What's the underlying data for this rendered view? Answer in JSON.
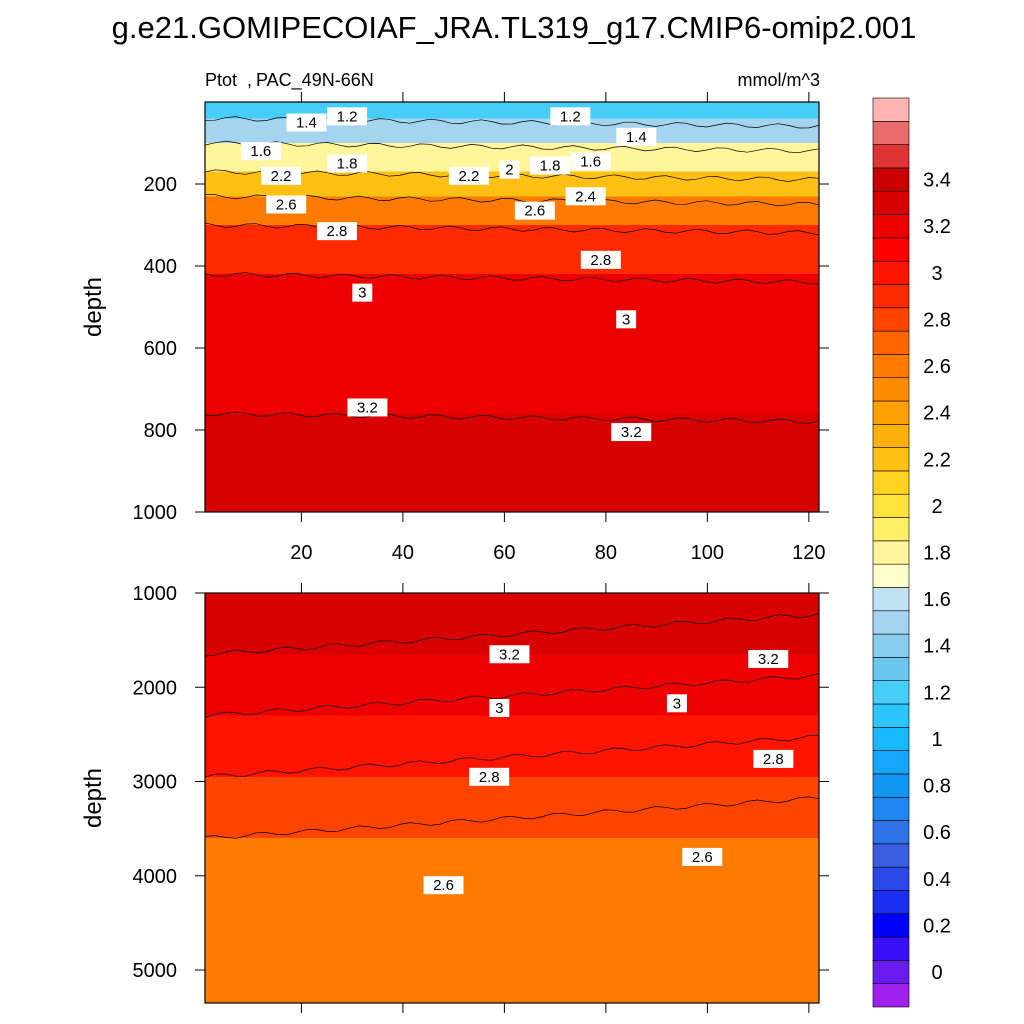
{
  "title": "g.e21.GOMIPECOIAF_JRA.TL319_g17.CMIP6-omip2.001",
  "chart_data": {
    "type": "contour",
    "variable": "Ptot",
    "region": "PAC_49N-66N",
    "units": "mmol/m^3",
    "x_label": "",
    "x_ticks": [
      20,
      40,
      60,
      80,
      100,
      120
    ],
    "x_range": [
      1,
      122
    ],
    "panels": [
      {
        "name": "upper",
        "ylabel": "depth",
        "y_range": [
          0,
          1000
        ],
        "y_ticks": [
          200,
          400,
          600,
          800,
          1000
        ],
        "fill_levels": [
          {
            "depth_top": 0,
            "depth_bottom": 40,
            "value": 1.1
          },
          {
            "depth_top": 40,
            "depth_bottom": 100,
            "value": 1.4
          },
          {
            "depth_top": 100,
            "depth_bottom": 170,
            "value": 1.7
          },
          {
            "depth_top": 170,
            "depth_bottom": 230,
            "value": 2.1
          },
          {
            "depth_top": 230,
            "depth_bottom": 300,
            "value": 2.5
          },
          {
            "depth_top": 300,
            "depth_bottom": 420,
            "value": 2.85
          },
          {
            "depth_top": 420,
            "depth_bottom": 760,
            "value": 3.1
          },
          {
            "depth_top": 760,
            "depth_bottom": 1000,
            "value": 3.25
          }
        ],
        "contour_labels": [
          {
            "text": "1.2",
            "x": 29,
            "depth": 35
          },
          {
            "text": "1.4",
            "x": 21,
            "depth": 50
          },
          {
            "text": "1.6",
            "x": 12,
            "depth": 120
          },
          {
            "text": "1.8",
            "x": 29,
            "depth": 150
          },
          {
            "text": "2.2",
            "x": 16,
            "depth": 180
          },
          {
            "text": "2.6",
            "x": 17,
            "depth": 250
          },
          {
            "text": "2.8",
            "x": 27,
            "depth": 315
          },
          {
            "text": "3",
            "x": 32,
            "depth": 465
          },
          {
            "text": "3.2",
            "x": 33,
            "depth": 745
          },
          {
            "text": "1.2",
            "x": 73,
            "depth": 35
          },
          {
            "text": "1.4",
            "x": 86,
            "depth": 85
          },
          {
            "text": "2.2",
            "x": 53,
            "depth": 180
          },
          {
            "text": "2",
            "x": 61,
            "depth": 165
          },
          {
            "text": "1.8",
            "x": 69,
            "depth": 155
          },
          {
            "text": "1.6",
            "x": 77,
            "depth": 145
          },
          {
            "text": "2.4",
            "x": 76,
            "depth": 230
          },
          {
            "text": "2.6",
            "x": 66,
            "depth": 265
          },
          {
            "text": "2.8",
            "x": 79,
            "depth": 385
          },
          {
            "text": "3",
            "x": 84,
            "depth": 530
          },
          {
            "text": "3.2",
            "x": 85,
            "depth": 805
          }
        ]
      },
      {
        "name": "lower",
        "ylabel": "depth",
        "y_range": [
          1000,
          5350
        ],
        "y_ticks": [
          1000,
          2000,
          3000,
          4000,
          5000
        ],
        "fill_levels": [
          {
            "depth_top": 1000,
            "depth_bottom": 1650,
            "value": 3.25
          },
          {
            "depth_top": 1650,
            "depth_bottom": 2300,
            "value": 3.1
          },
          {
            "depth_top": 2300,
            "depth_bottom": 2950,
            "value": 2.9
          },
          {
            "depth_top": 2950,
            "depth_bottom": 3600,
            "value": 2.75
          },
          {
            "depth_top": 3600,
            "depth_bottom": 5350,
            "value": 2.55
          }
        ],
        "contour_labels": [
          {
            "text": "3.2",
            "x": 61,
            "depth": 1650
          },
          {
            "text": "3.2",
            "x": 112,
            "depth": 1700
          },
          {
            "text": "3",
            "x": 59,
            "depth": 2220
          },
          {
            "text": "3",
            "x": 94,
            "depth": 2170
          },
          {
            "text": "2.8",
            "x": 57,
            "depth": 2950
          },
          {
            "text": "2.8",
            "x": 113,
            "depth": 2760
          },
          {
            "text": "2.6",
            "x": 48,
            "depth": 4100
          },
          {
            "text": "2.6",
            "x": 99,
            "depth": 3800
          }
        ]
      }
    ],
    "colorbar": {
      "tick_labels": [
        "0",
        "0.2",
        "0.4",
        "0.6",
        "0.8",
        "1",
        "1.2",
        "1.4",
        "1.6",
        "1.8",
        "2",
        "2.2",
        "2.4",
        "2.6",
        "2.8",
        "3",
        "3.2",
        "3.4"
      ],
      "levels": [
        -0.1,
        0,
        0.1,
        0.2,
        0.3,
        0.4,
        0.5,
        0.6,
        0.7,
        0.8,
        0.9,
        1.0,
        1.1,
        1.2,
        1.3,
        1.4,
        1.5,
        1.6,
        1.7,
        1.8,
        1.9,
        2.0,
        2.1,
        2.2,
        2.3,
        2.4,
        2.5,
        2.6,
        2.7,
        2.8,
        2.9,
        3.0,
        3.1,
        3.2,
        3.3,
        3.4,
        3.5,
        3.6
      ],
      "colors": [
        "#a020f0",
        "#6a1cf0",
        "#3a10f8",
        "#0000ff",
        "#1a2ef0",
        "#2a48e8",
        "#3a5ee0",
        "#2e72e8",
        "#1e86ee",
        "#1296f4",
        "#14a6fa",
        "#18b8fc",
        "#2ac6fc",
        "#46cef8",
        "#6ac8f0",
        "#88ccee",
        "#a4d4ee",
        "#c0e2f4",
        "#ffffcc",
        "#fff59a",
        "#fff06a",
        "#ffe23a",
        "#ffd21e",
        "#ffc014",
        "#ffb00a",
        "#ffa000",
        "#ff8c00",
        "#ff7a00",
        "#ff6600",
        "#ff4400",
        "#ff2a00",
        "#ff1400",
        "#ff0000",
        "#ee0000",
        "#d80000",
        "#c80000",
        "#e03434",
        "#e86a6a",
        "#ffb4b4"
      ]
    }
  }
}
